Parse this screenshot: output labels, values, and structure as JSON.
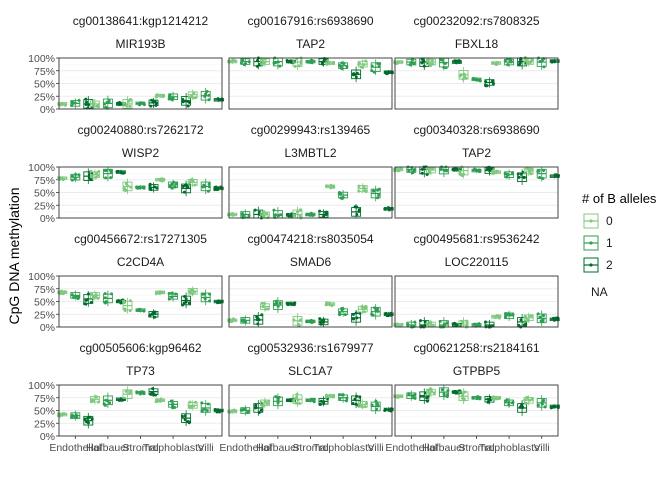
{
  "chart_data": {
    "type": "box-jitter",
    "ylabel": "CpG DNA methylation",
    "y_ticks": [
      "0%",
      "25%",
      "50%",
      "75%",
      "100%"
    ],
    "ylim": [
      0,
      1
    ],
    "categories": [
      "Endothelial",
      "Hofbauer",
      "Stromal",
      "Trophoblasts",
      "Villi"
    ],
    "grid": true,
    "legend": {
      "title": "# of B alleles",
      "position": "right",
      "entries": [
        "0",
        "1",
        "2"
      ],
      "na_label": "NA"
    },
    "series_colors": {
      "0": "#7fc97f",
      "1": "#2e9e52",
      "2": "#006d2c"
    },
    "facets": [
      {
        "strip1": "cg00138641:kgp1214212",
        "strip2": "MIR193B",
        "values": [
          [
            0.1,
            0.11,
            0.1
          ],
          [
            0.1,
            0.11,
            0.1
          ],
          [
            0.1,
            0.11,
            0.12
          ],
          [
            0.26,
            0.24,
            0.16
          ],
          [
            0.28,
            0.26,
            0.18
          ]
        ]
      },
      {
        "strip1": "cg00167916:rs6938690",
        "strip2": "TAP2",
        "values": [
          [
            0.93,
            0.93,
            0.93
          ],
          [
            0.93,
            0.93,
            0.93
          ],
          [
            0.92,
            0.93,
            0.93
          ],
          [
            0.9,
            0.85,
            0.68
          ],
          [
            0.88,
            0.82,
            0.72
          ]
        ]
      },
      {
        "strip1": "cg00232092:rs7808325",
        "strip2": "FBXL18",
        "values": [
          [
            0.92,
            0.92,
            0.92
          ],
          [
            0.92,
            0.91,
            0.92
          ],
          [
            0.67,
            0.58,
            0.52
          ],
          [
            0.9,
            0.92,
            0.93
          ],
          [
            0.93,
            0.92,
            0.94
          ]
        ]
      },
      {
        "strip1": "cg00240880:rs7262172",
        "strip2": "WISP2",
        "values": [
          [
            0.78,
            0.8,
            0.82
          ],
          [
            0.85,
            0.87,
            0.9
          ],
          [
            0.62,
            0.6,
            0.6
          ],
          [
            0.75,
            0.65,
            0.58
          ],
          [
            0.7,
            0.62,
            0.58
          ]
        ]
      },
      {
        "strip1": "cg00299943:rs139465",
        "strip2": "L3MBTL2",
        "values": [
          [
            0.07,
            0.07,
            0.07
          ],
          [
            0.06,
            0.06,
            0.06
          ],
          [
            0.07,
            0.07,
            0.07
          ],
          [
            0.62,
            0.45,
            0.12
          ],
          [
            0.58,
            0.48,
            0.18
          ]
        ]
      },
      {
        "strip1": "cg00340328:rs6938690",
        "strip2": "TAP2",
        "values": [
          [
            0.95,
            0.95,
            0.95
          ],
          [
            0.94,
            0.95,
            0.95
          ],
          [
            0.93,
            0.93,
            0.93
          ],
          [
            0.9,
            0.85,
            0.8
          ],
          [
            0.92,
            0.87,
            0.82
          ]
        ]
      },
      {
        "strip1": "cg00456672:rs17271305",
        "strip2": "C2CD4A",
        "values": [
          [
            0.68,
            0.62,
            0.55
          ],
          [
            0.62,
            0.56,
            0.5
          ],
          [
            0.42,
            0.33,
            0.25
          ],
          [
            0.68,
            0.6,
            0.52
          ],
          [
            0.7,
            0.58,
            0.5
          ]
        ]
      },
      {
        "strip1": "cg00474218:rs8035054",
        "strip2": "SMAD6",
        "values": [
          [
            0.13,
            0.13,
            0.14
          ],
          [
            0.4,
            0.43,
            0.46
          ],
          [
            0.12,
            0.11,
            0.1
          ],
          [
            0.45,
            0.3,
            0.18
          ],
          [
            0.35,
            0.3,
            0.25
          ]
        ]
      },
      {
        "strip1": "cg00495681:rs9536242",
        "strip2": "LOC220115",
        "values": [
          [
            0.04,
            0.04,
            0.04
          ],
          [
            0.04,
            0.04,
            0.04
          ],
          [
            0.04,
            0.04,
            0.04
          ],
          [
            0.2,
            0.22,
            0.1
          ],
          [
            0.18,
            0.17,
            0.15
          ]
        ]
      },
      {
        "strip1": "cg00505606:kgp96462",
        "strip2": "TP73",
        "values": [
          [
            0.42,
            0.4,
            0.3
          ],
          [
            0.72,
            0.7,
            0.72
          ],
          [
            0.82,
            0.85,
            0.87
          ],
          [
            0.7,
            0.62,
            0.35
          ],
          [
            0.6,
            0.55,
            0.5
          ]
        ]
      },
      {
        "strip1": "cg00532936:rs1679977",
        "strip2": "SLC1A7",
        "values": [
          [
            0.48,
            0.5,
            0.55
          ],
          [
            0.65,
            0.68,
            0.7
          ],
          [
            0.72,
            0.7,
            0.68
          ],
          [
            0.78,
            0.75,
            0.7
          ],
          [
            0.62,
            0.58,
            0.52
          ]
        ]
      },
      {
        "strip1": "cg00621258:rs2184161",
        "strip2": "GTPBP5",
        "values": [
          [
            0.78,
            0.79,
            0.78
          ],
          [
            0.86,
            0.86,
            0.86
          ],
          [
            0.78,
            0.75,
            0.72
          ],
          [
            0.75,
            0.65,
            0.55
          ],
          [
            0.7,
            0.65,
            0.58
          ]
        ]
      }
    ]
  }
}
